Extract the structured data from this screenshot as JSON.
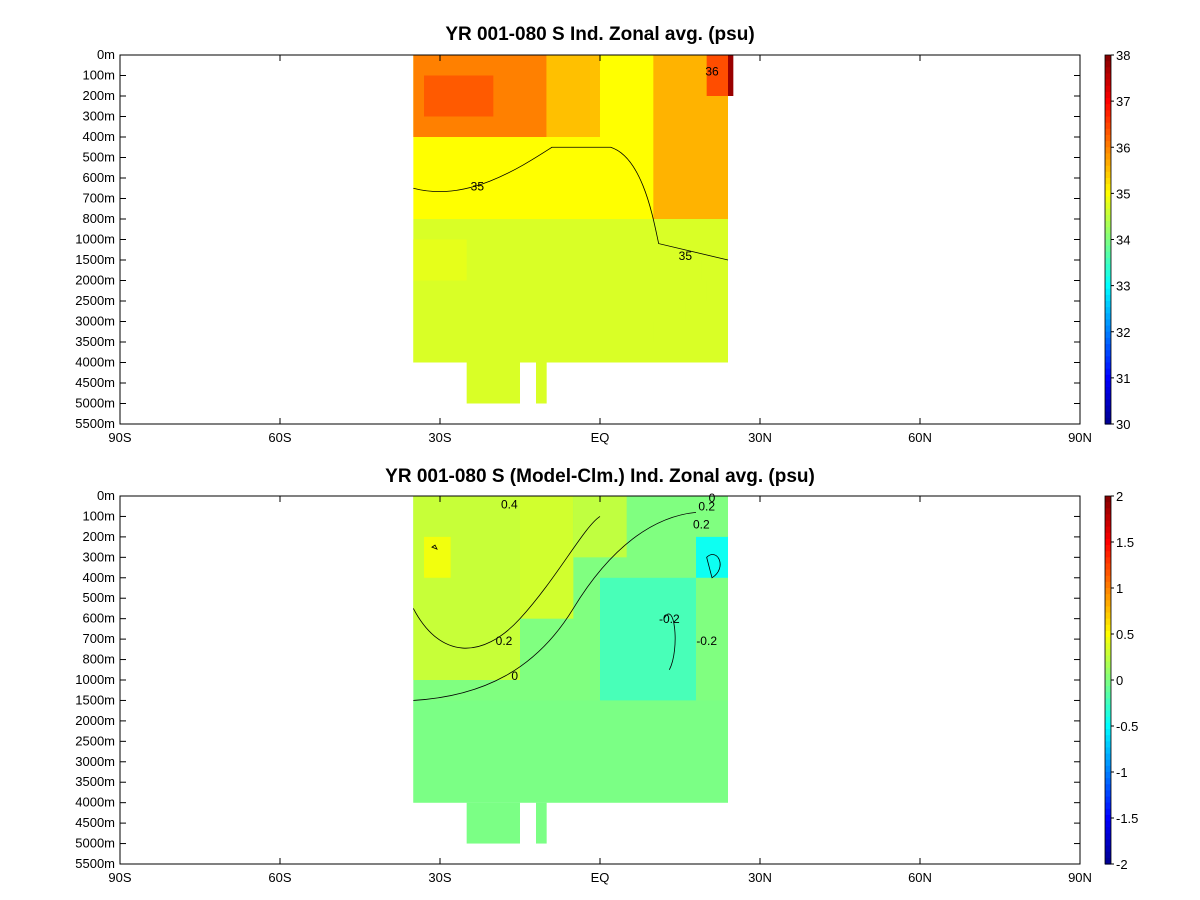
{
  "chart_data": [
    {
      "type": "heatmap",
      "title": "YR 001-080 S Ind. Zonal avg. (psu)",
      "xlabel": "",
      "ylabel": "",
      "x_ticks": [
        "90S",
        "60S",
        "30S",
        "EQ",
        "30N",
        "60N",
        "90N"
      ],
      "xlim": [
        -90,
        90
      ],
      "y_ticks": [
        "0m",
        "100m",
        "200m",
        "300m",
        "400m",
        "500m",
        "600m",
        "700m",
        "800m",
        "1000m",
        "1500m",
        "2000m",
        "2500m",
        "3000m",
        "3500m",
        "4000m",
        "4500m",
        "5000m",
        "5500m"
      ],
      "colorbar": {
        "min": 30,
        "max": 38,
        "ticks": [
          "38",
          "37",
          "36",
          "35",
          "34",
          "33",
          "32",
          "31",
          "30"
        ]
      },
      "colormap": [
        "#00008f",
        "#0000ff",
        "#0080ff",
        "#00ffff",
        "#80ff80",
        "#ffff00",
        "#ff8000",
        "#ff0000",
        "#800000"
      ],
      "contour_labels": [
        "35",
        "35",
        "36"
      ],
      "cells": [
        {
          "lat_range": [
            -35,
            24
          ],
          "depth_range": [
            0,
            8
          ],
          "value": 35.0
        },
        {
          "lat_range": [
            -35,
            24
          ],
          "depth_range": [
            8,
            15
          ],
          "value": 34.7
        },
        {
          "lat_range": [
            -35,
            -10
          ],
          "depth_range": [
            0,
            4
          ],
          "value": 36.0
        },
        {
          "lat_range": [
            -33,
            -20
          ],
          "depth_range": [
            1,
            3
          ],
          "value": 36.3
        },
        {
          "lat_range": [
            -10,
            0
          ],
          "depth_range": [
            0,
            4
          ],
          "value": 35.5
        },
        {
          "lat_range": [
            10,
            24
          ],
          "depth_range": [
            0,
            8
          ],
          "value": 35.6
        },
        {
          "lat_range": [
            20,
            24
          ],
          "depth_range": [
            0,
            2
          ],
          "value": 36.4
        },
        {
          "lat_range": [
            24,
            25
          ],
          "depth_range": [
            0,
            2
          ],
          "value": 37.8
        },
        {
          "lat_range": [
            -35,
            -25
          ],
          "depth_range": [
            9,
            11
          ],
          "value": 34.8
        },
        {
          "lat_range": [
            -35,
            24
          ],
          "depth_range": [
            11,
            15
          ],
          "value": 34.7
        },
        {
          "lat_range": [
            19,
            22
          ],
          "depth_range": [
            10,
            11
          ],
          "value": 34.7
        },
        {
          "lat_range": [
            17,
            20
          ],
          "depth_range": [
            11,
            12
          ],
          "value": 34.7
        },
        {
          "lat_range": [
            16,
            18
          ],
          "depth_range": [
            12,
            13
          ],
          "value": 34.7
        },
        {
          "lat_range": [
            10,
            16
          ],
          "depth_range": [
            13,
            14
          ],
          "value": 34.7
        },
        {
          "lat_range": [
            -25,
            -15
          ],
          "depth_range": [
            15,
            17
          ],
          "value": 34.7
        },
        {
          "lat_range": [
            -12,
            -10
          ],
          "depth_range": [
            15,
            17
          ],
          "value": 34.7
        }
      ]
    },
    {
      "type": "heatmap",
      "title": "YR 001-080 S (Model-Clm.) Ind. Zonal avg. (psu)",
      "xlabel": "",
      "ylabel": "",
      "x_ticks": [
        "90S",
        "60S",
        "30S",
        "EQ",
        "30N",
        "60N",
        "90N"
      ],
      "xlim": [
        -90,
        90
      ],
      "y_ticks": [
        "0m",
        "100m",
        "200m",
        "300m",
        "400m",
        "500m",
        "600m",
        "700m",
        "800m",
        "1000m",
        "1500m",
        "2000m",
        "2500m",
        "3000m",
        "3500m",
        "4000m",
        "4500m",
        "5000m",
        "5500m"
      ],
      "colorbar": {
        "min": -2,
        "max": 2,
        "ticks": [
          "2",
          "1.5",
          "1",
          "0.5",
          "0",
          "-0.5",
          "-1",
          "-1.5",
          "-2"
        ]
      },
      "colormap": [
        "#00008f",
        "#0000ff",
        "#0080ff",
        "#00ffff",
        "#80ff80",
        "#ffff00",
        "#ff8000",
        "#ff0000",
        "#800000"
      ],
      "contour_labels": [
        "0.4",
        "0.2",
        "0",
        "0.2",
        "-0.2",
        "0.2",
        "-0.2",
        "0"
      ],
      "cells": [
        {
          "lat_range": [
            -35,
            24
          ],
          "depth_range": [
            0,
            15
          ],
          "value": 0.0
        },
        {
          "lat_range": [
            -35,
            -5
          ],
          "depth_range": [
            0,
            6
          ],
          "value": 0.32
        },
        {
          "lat_range": [
            -35,
            -15
          ],
          "depth_range": [
            0,
            9
          ],
          "value": 0.28
        },
        {
          "lat_range": [
            -5,
            5
          ],
          "depth_range": [
            0,
            3
          ],
          "value": 0.25
        },
        {
          "lat_range": [
            -33,
            -28
          ],
          "depth_range": [
            2,
            4
          ],
          "value": 0.45
        },
        {
          "lat_range": [
            0,
            18
          ],
          "depth_range": [
            4,
            10
          ],
          "value": -0.22
        },
        {
          "lat_range": [
            18,
            24
          ],
          "depth_range": [
            2,
            4
          ],
          "value": -0.45
        },
        {
          "lat_range": [
            -35,
            24
          ],
          "depth_range": [
            10,
            15
          ],
          "value": -0.02
        },
        {
          "lat_range": [
            -25,
            -15
          ],
          "depth_range": [
            15,
            17
          ],
          "value": -0.02
        },
        {
          "lat_range": [
            -12,
            -10
          ],
          "depth_range": [
            15,
            17
          ],
          "value": -0.02
        }
      ]
    }
  ]
}
